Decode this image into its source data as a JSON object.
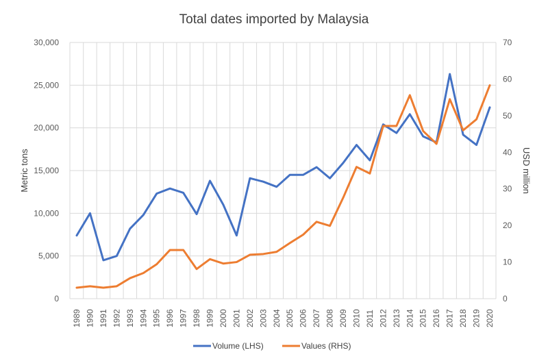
{
  "chart_data": {
    "type": "line",
    "title": "Total dates imported by Malaysia",
    "xlabel": "",
    "ylabel": "Metric tons",
    "y2label": "USD million",
    "ylim": [
      0,
      30000
    ],
    "y2lim": [
      0,
      70
    ],
    "yticks": [
      "0",
      "5,000",
      "10,000",
      "15,000",
      "20,000",
      "25,000",
      "30,000"
    ],
    "y2ticks": [
      "0",
      "10",
      "20",
      "30",
      "40",
      "50",
      "60",
      "70"
    ],
    "grid": true,
    "legend_position": "bottom",
    "categories": [
      "1989",
      "1990",
      "1991",
      "1992",
      "1993",
      "1994",
      "1995",
      "1996",
      "1997",
      "1998",
      "1999",
      "2000",
      "2001",
      "2002",
      "2003",
      "2004",
      "2005",
      "2006",
      "2007",
      "2008",
      "2009",
      "2010",
      "2011",
      "2012",
      "2013",
      "2014",
      "2015",
      "2016",
      "2017",
      "2018",
      "2019",
      "2020"
    ],
    "series": [
      {
        "name": "Volume (LHS)",
        "axis": "left",
        "color": "#4472C4",
        "values": [
          7400,
          10000,
          4500,
          5000,
          8200,
          9800,
          12300,
          12900,
          12400,
          9900,
          13800,
          11000,
          7400,
          14100,
          13700,
          13100,
          14500,
          14500,
          15400,
          14100,
          15900,
          18000,
          16200,
          20400,
          19400,
          21600,
          19000,
          18300,
          26300,
          19200,
          18000,
          22400
        ]
      },
      {
        "name": "Values (RHS)",
        "axis": "right",
        "color": "#ED7D31",
        "values": [
          3.0,
          3.4,
          3.0,
          3.4,
          5.6,
          7.0,
          9.4,
          13.3,
          13.3,
          8.1,
          10.8,
          9.6,
          10.0,
          12.0,
          12.2,
          12.8,
          15.2,
          17.5,
          21.0,
          19.9,
          27.6,
          36.0,
          34.2,
          47.2,
          47.2,
          55.6,
          45.8,
          42.3,
          54.5,
          46.0,
          49.0,
          58.3
        ]
      }
    ]
  }
}
